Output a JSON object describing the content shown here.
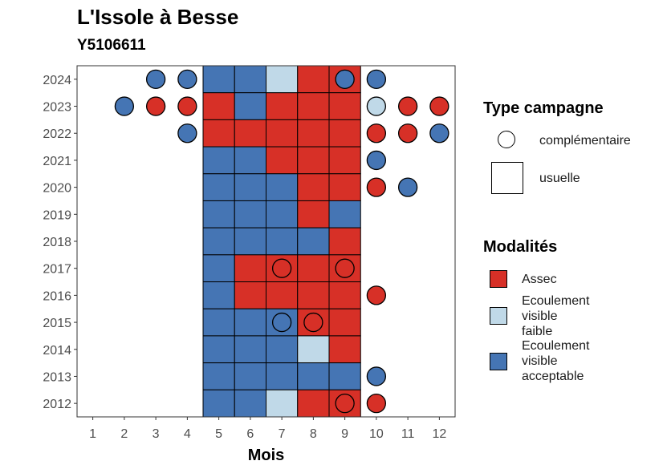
{
  "chart_data": {
    "type": "heatmap",
    "title": "L'Issole à Besse",
    "subtitle": "Y5106611",
    "xlabel": "Mois",
    "ylabel": "",
    "x_categories": [
      "1",
      "2",
      "3",
      "4",
      "5",
      "6",
      "7",
      "8",
      "9",
      "10",
      "11",
      "12"
    ],
    "y_categories": [
      "2012",
      "2013",
      "2014",
      "2015",
      "2016",
      "2017",
      "2018",
      "2019",
      "2020",
      "2021",
      "2022",
      "2023",
      "2024"
    ],
    "colors": {
      "Assec": "#d73027",
      "Ecoulement visible faible": "#c0d9e8",
      "Ecoulement visible acceptable": "#4575b4"
    },
    "usual_window_months": [
      5,
      9
    ],
    "cells": [
      {
        "year": "2024",
        "month": 3,
        "campaign": "complémentaire",
        "modalite": "Ecoulement visible acceptable"
      },
      {
        "year": "2024",
        "month": 4,
        "campaign": "complémentaire",
        "modalite": "Ecoulement visible acceptable"
      },
      {
        "year": "2024",
        "month": 5,
        "campaign": "usuelle",
        "modalite": "Ecoulement visible acceptable"
      },
      {
        "year": "2024",
        "month": 6,
        "campaign": "usuelle",
        "modalite": "Ecoulement visible acceptable"
      },
      {
        "year": "2024",
        "month": 7,
        "campaign": "usuelle",
        "modalite": "Ecoulement visible faible"
      },
      {
        "year": "2024",
        "month": 8,
        "campaign": "usuelle",
        "modalite": "Assec"
      },
      {
        "year": "2024",
        "month": 9,
        "campaign": "usuelle",
        "modalite": "Assec"
      },
      {
        "year": "2024",
        "month": 9,
        "campaign": "complémentaire",
        "modalite": "Ecoulement visible acceptable"
      },
      {
        "year": "2024",
        "month": 10,
        "campaign": "complémentaire",
        "modalite": "Ecoulement visible acceptable"
      },
      {
        "year": "2023",
        "month": 2,
        "campaign": "complémentaire",
        "modalite": "Ecoulement visible acceptable"
      },
      {
        "year": "2023",
        "month": 3,
        "campaign": "complémentaire",
        "modalite": "Assec"
      },
      {
        "year": "2023",
        "month": 4,
        "campaign": "complémentaire",
        "modalite": "Assec"
      },
      {
        "year": "2023",
        "month": 5,
        "campaign": "usuelle",
        "modalite": "Assec"
      },
      {
        "year": "2023",
        "month": 6,
        "campaign": "usuelle",
        "modalite": "Ecoulement visible acceptable"
      },
      {
        "year": "2023",
        "month": 7,
        "campaign": "usuelle",
        "modalite": "Assec"
      },
      {
        "year": "2023",
        "month": 8,
        "campaign": "usuelle",
        "modalite": "Assec"
      },
      {
        "year": "2023",
        "month": 9,
        "campaign": "usuelle",
        "modalite": "Assec"
      },
      {
        "year": "2023",
        "month": 10,
        "campaign": "complémentaire",
        "modalite": "Ecoulement visible faible"
      },
      {
        "year": "2023",
        "month": 11,
        "campaign": "complémentaire",
        "modalite": "Assec"
      },
      {
        "year": "2023",
        "month": 12,
        "campaign": "complémentaire",
        "modalite": "Assec"
      },
      {
        "year": "2022",
        "month": 4,
        "campaign": "complémentaire",
        "modalite": "Ecoulement visible acceptable"
      },
      {
        "year": "2022",
        "month": 5,
        "campaign": "usuelle",
        "modalite": "Assec"
      },
      {
        "year": "2022",
        "month": 6,
        "campaign": "usuelle",
        "modalite": "Assec"
      },
      {
        "year": "2022",
        "month": 7,
        "campaign": "usuelle",
        "modalite": "Assec"
      },
      {
        "year": "2022",
        "month": 8,
        "campaign": "usuelle",
        "modalite": "Assec"
      },
      {
        "year": "2022",
        "month": 9,
        "campaign": "usuelle",
        "modalite": "Assec"
      },
      {
        "year": "2022",
        "month": 10,
        "campaign": "complémentaire",
        "modalite": "Assec"
      },
      {
        "year": "2022",
        "month": 11,
        "campaign": "complémentaire",
        "modalite": "Assec"
      },
      {
        "year": "2022",
        "month": 12,
        "campaign": "complémentaire",
        "modalite": "Ecoulement visible acceptable"
      },
      {
        "year": "2021",
        "month": 5,
        "campaign": "usuelle",
        "modalite": "Ecoulement visible acceptable"
      },
      {
        "year": "2021",
        "month": 6,
        "campaign": "usuelle",
        "modalite": "Ecoulement visible acceptable"
      },
      {
        "year": "2021",
        "month": 7,
        "campaign": "usuelle",
        "modalite": "Assec"
      },
      {
        "year": "2021",
        "month": 8,
        "campaign": "usuelle",
        "modalite": "Assec"
      },
      {
        "year": "2021",
        "month": 9,
        "campaign": "usuelle",
        "modalite": "Assec"
      },
      {
        "year": "2021",
        "month": 10,
        "campaign": "complémentaire",
        "modalite": "Ecoulement visible acceptable"
      },
      {
        "year": "2020",
        "month": 5,
        "campaign": "usuelle",
        "modalite": "Ecoulement visible acceptable"
      },
      {
        "year": "2020",
        "month": 6,
        "campaign": "usuelle",
        "modalite": "Ecoulement visible acceptable"
      },
      {
        "year": "2020",
        "month": 7,
        "campaign": "usuelle",
        "modalite": "Ecoulement visible acceptable"
      },
      {
        "year": "2020",
        "month": 8,
        "campaign": "usuelle",
        "modalite": "Assec"
      },
      {
        "year": "2020",
        "month": 9,
        "campaign": "usuelle",
        "modalite": "Assec"
      },
      {
        "year": "2020",
        "month": 10,
        "campaign": "complémentaire",
        "modalite": "Assec"
      },
      {
        "year": "2020",
        "month": 11,
        "campaign": "complémentaire",
        "modalite": "Ecoulement visible acceptable"
      },
      {
        "year": "2019",
        "month": 5,
        "campaign": "usuelle",
        "modalite": "Ecoulement visible acceptable"
      },
      {
        "year": "2019",
        "month": 6,
        "campaign": "usuelle",
        "modalite": "Ecoulement visible acceptable"
      },
      {
        "year": "2019",
        "month": 7,
        "campaign": "usuelle",
        "modalite": "Ecoulement visible acceptable"
      },
      {
        "year": "2019",
        "month": 8,
        "campaign": "usuelle",
        "modalite": "Assec"
      },
      {
        "year": "2019",
        "month": 9,
        "campaign": "usuelle",
        "modalite": "Ecoulement visible acceptable"
      },
      {
        "year": "2018",
        "month": 5,
        "campaign": "usuelle",
        "modalite": "Ecoulement visible acceptable"
      },
      {
        "year": "2018",
        "month": 6,
        "campaign": "usuelle",
        "modalite": "Ecoulement visible acceptable"
      },
      {
        "year": "2018",
        "month": 7,
        "campaign": "usuelle",
        "modalite": "Ecoulement visible acceptable"
      },
      {
        "year": "2018",
        "month": 8,
        "campaign": "usuelle",
        "modalite": "Ecoulement visible acceptable"
      },
      {
        "year": "2018",
        "month": 9,
        "campaign": "usuelle",
        "modalite": "Assec"
      },
      {
        "year": "2017",
        "month": 5,
        "campaign": "usuelle",
        "modalite": "Ecoulement visible acceptable"
      },
      {
        "year": "2017",
        "month": 6,
        "campaign": "usuelle",
        "modalite": "Assec"
      },
      {
        "year": "2017",
        "month": 7,
        "campaign": "usuelle",
        "modalite": "Assec"
      },
      {
        "year": "2017",
        "month": 7,
        "campaign": "complémentaire",
        "modalite": "Assec"
      },
      {
        "year": "2017",
        "month": 8,
        "campaign": "usuelle",
        "modalite": "Assec"
      },
      {
        "year": "2017",
        "month": 9,
        "campaign": "usuelle",
        "modalite": "Assec"
      },
      {
        "year": "2017",
        "month": 9,
        "campaign": "complémentaire",
        "modalite": "Assec"
      },
      {
        "year": "2016",
        "month": 5,
        "campaign": "usuelle",
        "modalite": "Ecoulement visible acceptable"
      },
      {
        "year": "2016",
        "month": 6,
        "campaign": "usuelle",
        "modalite": "Assec"
      },
      {
        "year": "2016",
        "month": 7,
        "campaign": "usuelle",
        "modalite": "Assec"
      },
      {
        "year": "2016",
        "month": 8,
        "campaign": "usuelle",
        "modalite": "Assec"
      },
      {
        "year": "2016",
        "month": 9,
        "campaign": "usuelle",
        "modalite": "Assec"
      },
      {
        "year": "2016",
        "month": 10,
        "campaign": "complémentaire",
        "modalite": "Assec"
      },
      {
        "year": "2015",
        "month": 5,
        "campaign": "usuelle",
        "modalite": "Ecoulement visible acceptable"
      },
      {
        "year": "2015",
        "month": 6,
        "campaign": "usuelle",
        "modalite": "Ecoulement visible acceptable"
      },
      {
        "year": "2015",
        "month": 7,
        "campaign": "usuelle",
        "modalite": "Ecoulement visible acceptable"
      },
      {
        "year": "2015",
        "month": 7,
        "campaign": "complémentaire",
        "modalite": "Ecoulement visible acceptable"
      },
      {
        "year": "2015",
        "month": 8,
        "campaign": "usuelle",
        "modalite": "Assec"
      },
      {
        "year": "2015",
        "month": 8,
        "campaign": "complémentaire",
        "modalite": "Assec"
      },
      {
        "year": "2015",
        "month": 9,
        "campaign": "usuelle",
        "modalite": "Assec"
      },
      {
        "year": "2014",
        "month": 5,
        "campaign": "usuelle",
        "modalite": "Ecoulement visible acceptable"
      },
      {
        "year": "2014",
        "month": 6,
        "campaign": "usuelle",
        "modalite": "Ecoulement visible acceptable"
      },
      {
        "year": "2014",
        "month": 7,
        "campaign": "usuelle",
        "modalite": "Ecoulement visible acceptable"
      },
      {
        "year": "2014",
        "month": 8,
        "campaign": "usuelle",
        "modalite": "Ecoulement visible faible"
      },
      {
        "year": "2014",
        "month": 9,
        "campaign": "usuelle",
        "modalite": "Assec"
      },
      {
        "year": "2013",
        "month": 5,
        "campaign": "usuelle",
        "modalite": "Ecoulement visible acceptable"
      },
      {
        "year": "2013",
        "month": 6,
        "campaign": "usuelle",
        "modalite": "Ecoulement visible acceptable"
      },
      {
        "year": "2013",
        "month": 7,
        "campaign": "usuelle",
        "modalite": "Ecoulement visible acceptable"
      },
      {
        "year": "2013",
        "month": 8,
        "campaign": "usuelle",
        "modalite": "Ecoulement visible acceptable"
      },
      {
        "year": "2013",
        "month": 9,
        "campaign": "usuelle",
        "modalite": "Ecoulement visible acceptable"
      },
      {
        "year": "2013",
        "month": 10,
        "campaign": "complémentaire",
        "modalite": "Ecoulement visible acceptable"
      },
      {
        "year": "2012",
        "month": 5,
        "campaign": "usuelle",
        "modalite": "Ecoulement visible acceptable"
      },
      {
        "year": "2012",
        "month": 6,
        "campaign": "usuelle",
        "modalite": "Ecoulement visible acceptable"
      },
      {
        "year": "2012",
        "month": 7,
        "campaign": "usuelle",
        "modalite": "Ecoulement visible faible"
      },
      {
        "year": "2012",
        "month": 8,
        "campaign": "usuelle",
        "modalite": "Assec"
      },
      {
        "year": "2012",
        "month": 9,
        "campaign": "usuelle",
        "modalite": "Assec"
      },
      {
        "year": "2012",
        "month": 9,
        "campaign": "complémentaire",
        "modalite": "Assec"
      },
      {
        "year": "2012",
        "month": 10,
        "campaign": "complémentaire",
        "modalite": "Assec"
      }
    ]
  },
  "legend": {
    "campaign": {
      "title": "Type campagne",
      "items": [
        {
          "label": "complémentaire",
          "shape": "circle"
        },
        {
          "label": "usuelle",
          "shape": "square"
        }
      ]
    },
    "modalites": {
      "title": "Modalités",
      "items": [
        {
          "label": "Assec",
          "color": "#d73027"
        },
        {
          "label": "Ecoulement\nvisible\nfaible",
          "color": "#c0d9e8"
        },
        {
          "label": "Ecoulement\nvisible\nacceptable",
          "color": "#4575b4"
        }
      ]
    }
  }
}
